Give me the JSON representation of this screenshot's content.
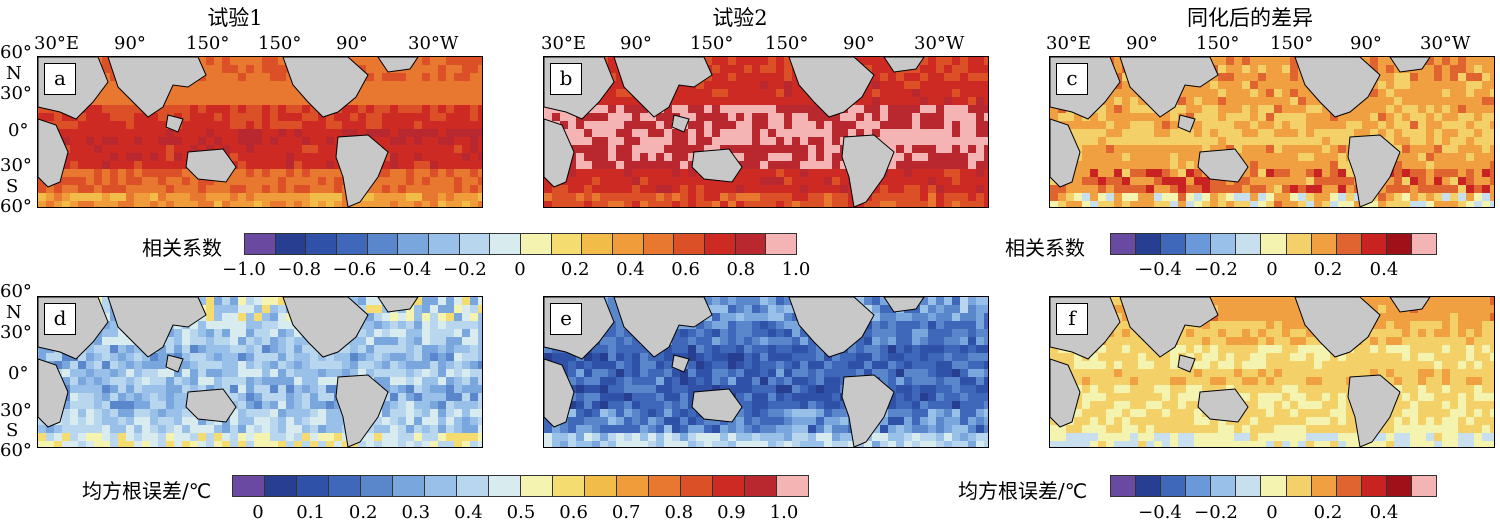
{
  "chart_data": {
    "type": "heatmap",
    "panels": [
      {
        "label": "a",
        "title": "试验1",
        "metric": "correlation",
        "bands": [
          [
            0.5,
            0.6
          ],
          [
            0.45,
            0.55
          ],
          [
            0.6,
            0.75
          ],
          [
            0.7,
            0.85
          ],
          [
            0.65,
            0.8
          ],
          [
            0.45,
            0.6
          ],
          [
            0.3,
            0.5
          ]
        ]
      },
      {
        "label": "b",
        "title": "试验2",
        "metric": "correlation",
        "bands": [
          [
            0.6,
            0.75
          ],
          [
            0.65,
            0.8
          ],
          [
            0.8,
            0.95
          ],
          [
            0.85,
            1.0
          ],
          [
            0.8,
            0.95
          ],
          [
            0.65,
            0.8
          ],
          [
            0.5,
            0.7
          ]
        ]
      },
      {
        "label": "c",
        "title": "同化后的差异",
        "metric": "correlation_diff",
        "bands": [
          [
            0.1,
            0.25
          ],
          [
            0.1,
            0.2
          ],
          [
            0.05,
            0.2
          ],
          [
            0.05,
            0.15
          ],
          [
            0.1,
            0.2
          ],
          [
            0.1,
            0.3
          ],
          [
            -0.1,
            0.2
          ]
        ]
      },
      {
        "label": "d",
        "metric": "rmse",
        "bands": [
          [
            0.3,
            0.6
          ],
          [
            0.3,
            0.5
          ],
          [
            0.25,
            0.45
          ],
          [
            0.3,
            0.5
          ],
          [
            0.25,
            0.45
          ],
          [
            0.3,
            0.5
          ],
          [
            0.4,
            0.6
          ]
        ]
      },
      {
        "label": "e",
        "metric": "rmse",
        "bands": [
          [
            0.2,
            0.4
          ],
          [
            0.15,
            0.3
          ],
          [
            0.1,
            0.25
          ],
          [
            0.1,
            0.3
          ],
          [
            0.1,
            0.25
          ],
          [
            0.15,
            0.35
          ],
          [
            0.3,
            0.5
          ]
        ]
      },
      {
        "label": "f",
        "metric": "rmse_diff",
        "bands": [
          [
            0.1,
            0.2
          ],
          [
            0.05,
            0.15
          ],
          [
            0.0,
            0.1
          ],
          [
            0.05,
            0.15
          ],
          [
            0.0,
            0.1
          ],
          [
            0.0,
            0.1
          ],
          [
            -0.1,
            0.05
          ]
        ]
      }
    ],
    "axes": {
      "x_ticks": [
        "30°E",
        "90°",
        "150°",
        "150°",
        "90°",
        "30°W"
      ],
      "y_ticks": [
        "60°",
        "N",
        "30°",
        "0°",
        "30°",
        "S",
        "60°"
      ]
    },
    "colorbars": {
      "corr": {
        "title": "相关系数",
        "ticks": [
          "−1.0",
          "−0.8",
          "−0.6",
          "−0.4",
          "−0.2",
          "0",
          "0.2",
          "0.4",
          "0.6",
          "0.8",
          "1.0"
        ],
        "colors": [
          "#6a4aa0",
          "#283e90",
          "#2f52a8",
          "#3f68ba",
          "#5a86cc",
          "#7aa6de",
          "#98c0e8",
          "#b8d6ee",
          "#d8ecf0",
          "#f4f4b0",
          "#f4dc70",
          "#f2bc48",
          "#f09c3a",
          "#e87830",
          "#dc5028",
          "#cc2a22",
          "#b8282e",
          "#f4b4b4"
        ]
      },
      "diff": {
        "title": "相关系数",
        "ticks": [
          "−0.4",
          "−0.2",
          "0",
          "0.2",
          "0.4"
        ],
        "colors": [
          "#6a4aa0",
          "#283e90",
          "#3f68ba",
          "#6a98d8",
          "#98c0e8",
          "#c8e0ee",
          "#f4f4b0",
          "#f4d068",
          "#f0a040",
          "#e06430",
          "#c82222",
          "#a01018",
          "#f4b4b4"
        ]
      },
      "rmse": {
        "title": "均方根误差/℃",
        "ticks": [
          "0",
          "0.1",
          "0.2",
          "0.3",
          "0.4",
          "0.5",
          "0.6",
          "0.7",
          "0.8",
          "0.9",
          "1.0"
        ],
        "colors": [
          "#6a4aa0",
          "#283e90",
          "#2f52a8",
          "#3f68ba",
          "#5a86cc",
          "#7aa6de",
          "#98c0e8",
          "#b8d6ee",
          "#d8ecf0",
          "#f4f4b0",
          "#f4dc70",
          "#f2bc48",
          "#f09c3a",
          "#e87830",
          "#dc5028",
          "#cc2a22",
          "#b8282e",
          "#f4b4b4"
        ]
      },
      "rmse_diff": {
        "title": "均方根误差/℃",
        "ticks": [
          "−0.4",
          "−0.2",
          "0",
          "0.2",
          "0.4"
        ],
        "colors": [
          "#6a4aa0",
          "#283e90",
          "#3f68ba",
          "#6a98d8",
          "#98c0e8",
          "#c8e0ee",
          "#f4f4b0",
          "#f4d068",
          "#f0a040",
          "#e06430",
          "#c82222",
          "#a01018",
          "#f4b4b4"
        ]
      }
    }
  }
}
